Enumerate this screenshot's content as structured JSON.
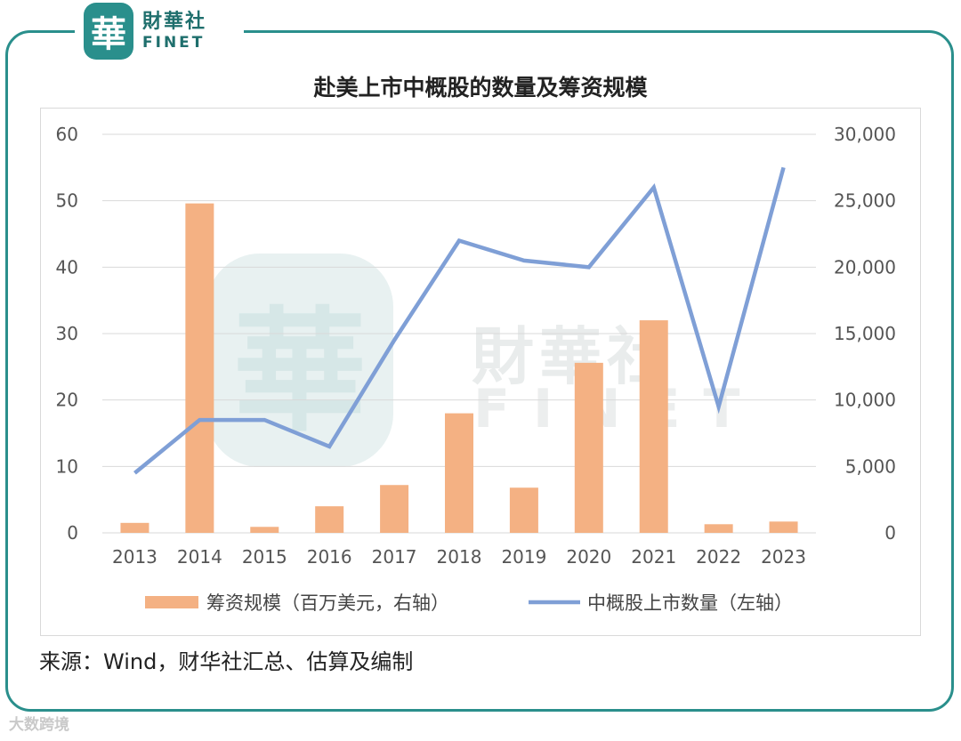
{
  "logo": {
    "seal_char": "華",
    "name_cn": "財華社",
    "name_en": "FINET"
  },
  "watermark": {
    "seal_char": "華",
    "cn": "財華社",
    "en": "FINET"
  },
  "chart_data": {
    "type": "bar+line",
    "title": "赴美上市中概股的数量及筹资规模",
    "categories": [
      "2013",
      "2014",
      "2015",
      "2016",
      "2017",
      "2018",
      "2019",
      "2020",
      "2021",
      "2022",
      "2023"
    ],
    "series": [
      {
        "name": "筹资规模（百万美元，右轴）",
        "type": "bar",
        "axis": "right",
        "color": "#f4b183",
        "values": [
          750,
          24800,
          450,
          2000,
          3600,
          9000,
          3400,
          12800,
          16000,
          650,
          850
        ]
      },
      {
        "name": "中概股上市数量（左轴）",
        "type": "line",
        "axis": "left",
        "color": "#7f9fd6",
        "values": [
          9,
          17,
          17,
          13,
          29,
          44,
          41,
          40,
          52,
          19,
          55
        ]
      }
    ],
    "left_axis": {
      "ylim": [
        0,
        60
      ],
      "ticks": [
        "0",
        "10",
        "20",
        "30",
        "40",
        "50",
        "60"
      ]
    },
    "right_axis": {
      "ylim": [
        0,
        30000
      ],
      "ticks": [
        "0",
        "5,000",
        "10,000",
        "15,000",
        "20,000",
        "25,000",
        "30,000"
      ]
    },
    "legend": {
      "position": "bottom"
    }
  },
  "source_note": "来源：Wind，财华社汇总、估算及编制",
  "footer_watermark": "大数跨境"
}
